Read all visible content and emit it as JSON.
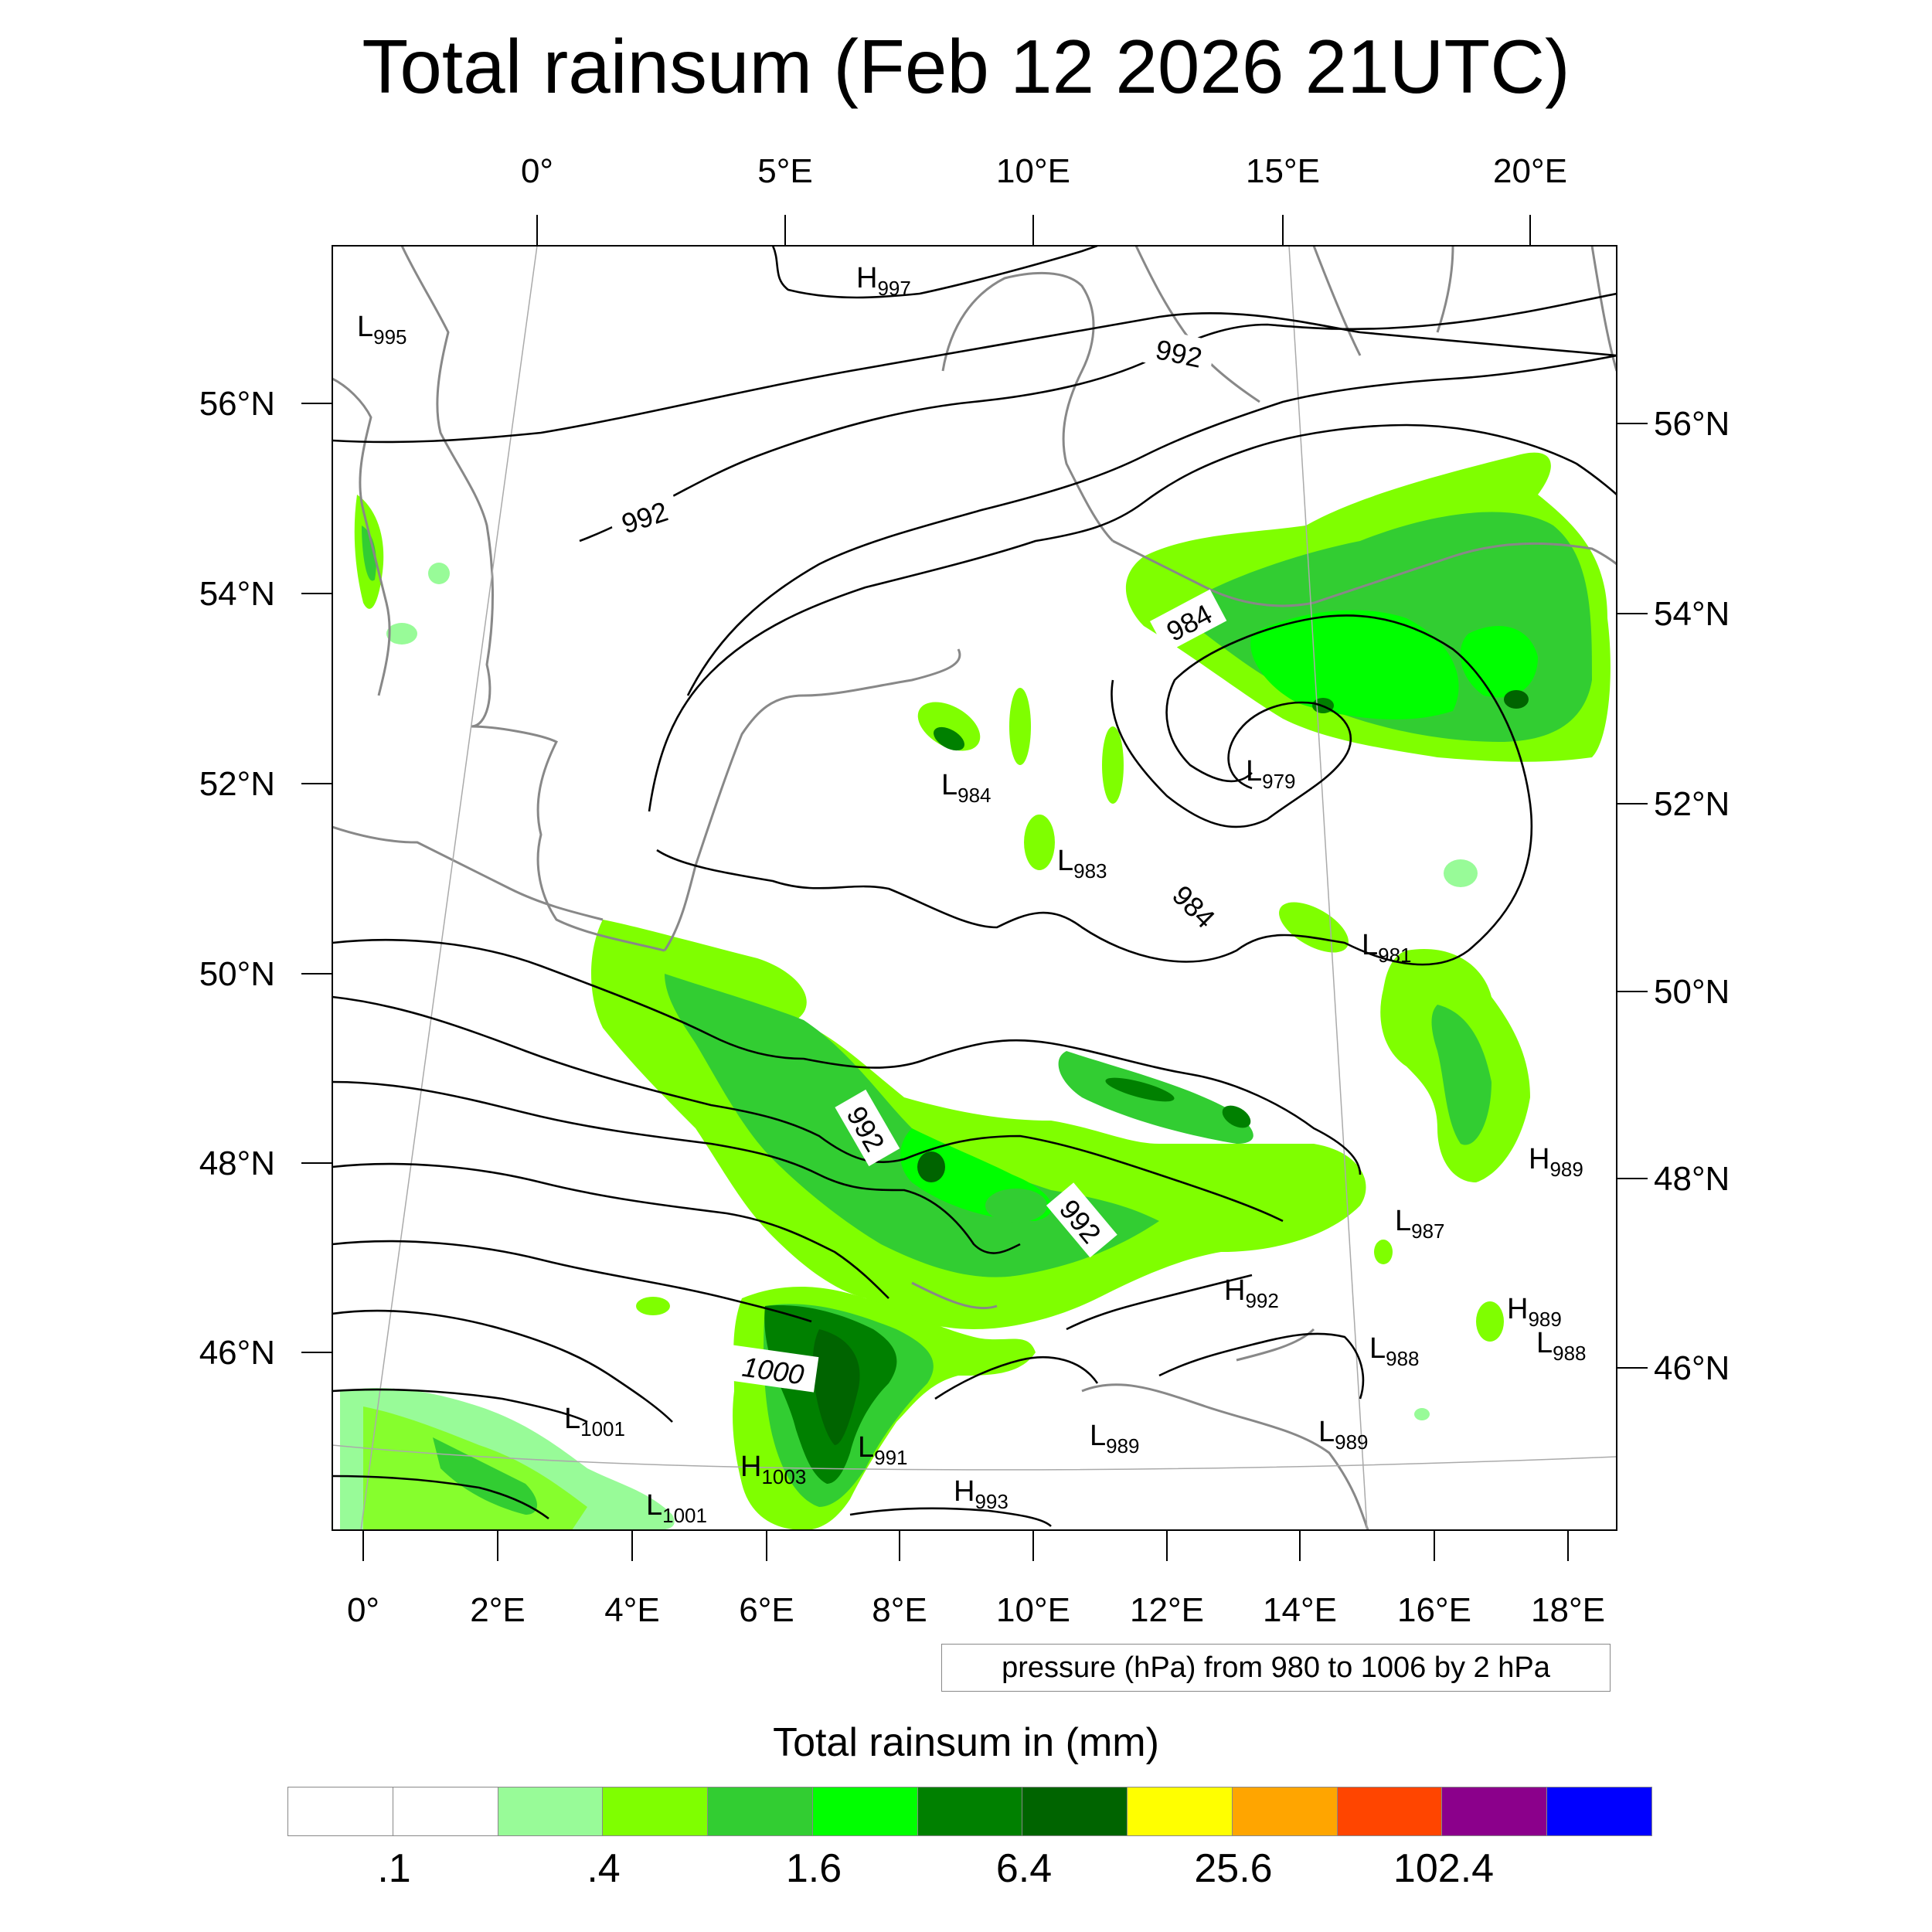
{
  "title": "Total rainsum (Feb 12 2026 21UTC)",
  "axes": {
    "top_lon_labels": [
      "0°",
      "5°E",
      "10°E",
      "15°E",
      "20°E"
    ],
    "bottom_lon_labels": [
      "0°",
      "2°E",
      "4°E",
      "6°E",
      "8°E",
      "10°E",
      "12°E",
      "14°E",
      "16°E",
      "18°E"
    ],
    "left_lat_labels": [
      "56°N",
      "54°N",
      "52°N",
      "50°N",
      "48°N",
      "46°N"
    ],
    "right_lat_labels": [
      "56°N",
      "54°N",
      "52°N",
      "50°N",
      "48°N",
      "46°N"
    ]
  },
  "pressure_centers": [
    {
      "type": "H",
      "value": "997"
    },
    {
      "type": "L",
      "value": "995"
    },
    {
      "type": "L",
      "value": "984"
    },
    {
      "type": "L",
      "value": "983"
    },
    {
      "type": "L",
      "value": "979"
    },
    {
      "type": "L",
      "value": "981"
    },
    {
      "type": "H",
      "value": "989"
    },
    {
      "type": "L",
      "value": "987"
    },
    {
      "type": "H",
      "value": "992"
    },
    {
      "type": "H",
      "value": "989"
    },
    {
      "type": "L",
      "value": "988"
    },
    {
      "type": "L",
      "value": "988"
    },
    {
      "type": "L",
      "value": "1001"
    },
    {
      "type": "L",
      "value": "991"
    },
    {
      "type": "H",
      "value": "1003"
    },
    {
      "type": "L",
      "value": "1001"
    },
    {
      "type": "H",
      "value": "993"
    },
    {
      "type": "L",
      "value": "989"
    },
    {
      "type": "L",
      "value": "989"
    }
  ],
  "contour_labels": [
    "992",
    "992",
    "984",
    "984",
    "992",
    "992",
    "1000"
  ],
  "contour_note": "pressure (hPa) from 980 to 1006 by 2 hPa",
  "colorbar": {
    "title": "Total rainsum in (mm)",
    "colors": [
      "#ffffff",
      "#ffffff",
      "#98fb98",
      "#7fff00",
      "#32cd32",
      "#00ff00",
      "#008000",
      "#006400",
      "#ffff00",
      "#ffa500",
      "#ff4500",
      "#8b008b",
      "#0000ff"
    ],
    "labels": [
      ".1",
      ".4",
      "1.6",
      "6.4",
      "25.6",
      "102.4"
    ]
  },
  "colors": {
    "contour": "#000000",
    "coastline": "#888888",
    "rain_light": "#98fb98",
    "rain_lime": "#7fff00",
    "rain_mid": "#32cd32",
    "rain_bright": "#00ff00",
    "rain_green": "#008000",
    "rain_dark": "#006400"
  }
}
